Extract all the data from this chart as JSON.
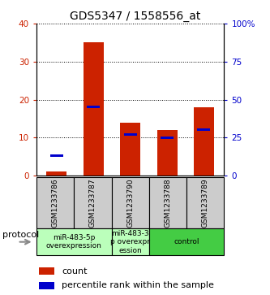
{
  "title": "GDS5347 / 1558556_at",
  "samples": [
    "GSM1233786",
    "GSM1233787",
    "GSM1233790",
    "GSM1233788",
    "GSM1233789"
  ],
  "counts": [
    1,
    35,
    14,
    12,
    18
  ],
  "percentiles": [
    13,
    45,
    27,
    25,
    30
  ],
  "ylim_left": [
    0,
    40
  ],
  "ylim_right": [
    0,
    100
  ],
  "yticks_left": [
    0,
    10,
    20,
    30,
    40
  ],
  "yticks_right": [
    0,
    25,
    50,
    75,
    100
  ],
  "ytick_labels_right": [
    "0",
    "25",
    "50",
    "75",
    "100%"
  ],
  "bar_color": "#cc2200",
  "percentile_color": "#0000cc",
  "sample_box_color": "#cccccc",
  "proto_light_color": "#bbffbb",
  "proto_dark_color": "#44cc44",
  "protocol_groups": [
    {
      "label": "miR-483-5p\noverexpression",
      "start": 0,
      "end": 2,
      "color": "#bbffbb"
    },
    {
      "label": "miR-483-3\np overexpr\nession",
      "start": 2,
      "end": 3,
      "color": "#bbffbb"
    },
    {
      "label": "control",
      "start": 3,
      "end": 5,
      "color": "#44cc44"
    }
  ],
  "legend_count_label": "count",
  "legend_percentile_label": "percentile rank within the sample",
  "bar_width": 0.55,
  "percentile_bar_width": 0.35,
  "percentile_bar_height": 1.5
}
